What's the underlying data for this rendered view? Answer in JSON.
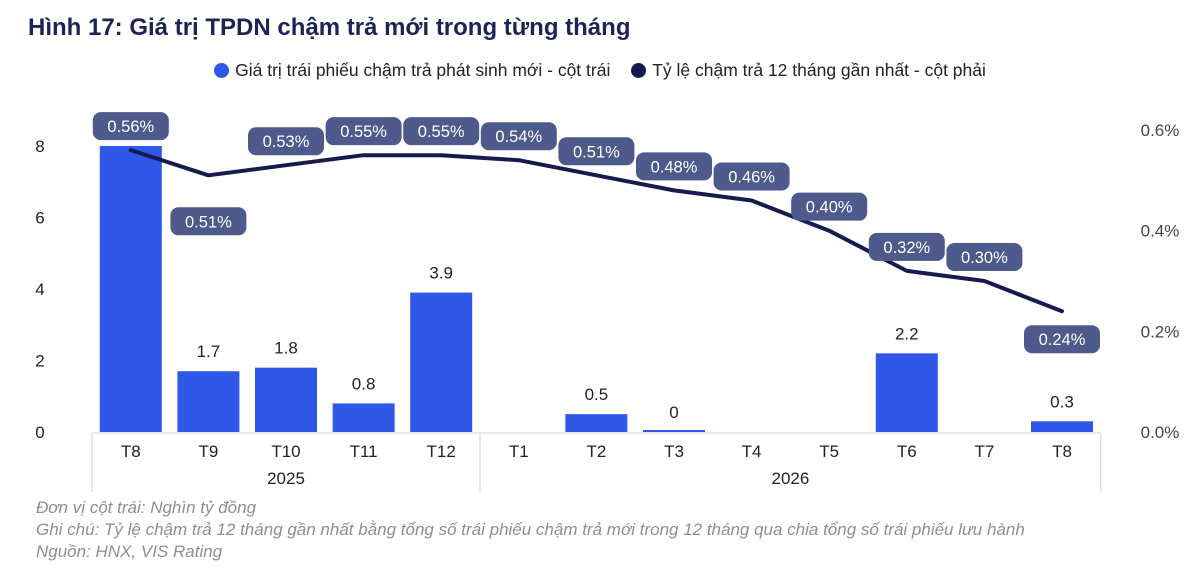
{
  "title": "Hình 17: Giá trị TPDN chậm trả mới trong từng tháng",
  "colors": {
    "bar": "#2f58e8",
    "line": "#161a4e",
    "label_bg": "#4e5a8c",
    "title": "#1c2454"
  },
  "chart_data": {
    "type": "bar",
    "categories": [
      "T8",
      "T9",
      "T10",
      "T11",
      "T12",
      "T1",
      "T2",
      "T3",
      "T4",
      "T5",
      "T6",
      "T7",
      "T8"
    ],
    "year_groups": [
      {
        "label": "2025",
        "start": 0,
        "end": 4
      },
      {
        "label": "2026",
        "start": 5,
        "end": 12
      }
    ],
    "series": [
      {
        "name": "Giá trị trái phiếu chậm trả phát sinh mới - cột trái",
        "type": "bar",
        "axis": "left",
        "values": [
          8,
          1.7,
          1.8,
          0.8,
          3.9,
          null,
          0.5,
          0,
          null,
          null,
          2.2,
          null,
          0.3
        ],
        "labels": [
          "8",
          "1.7",
          "1.8",
          "0.8",
          "3.9",
          "",
          "0.5",
          "0",
          "",
          "",
          "2.2",
          "",
          "0.3"
        ]
      },
      {
        "name": "Tỷ lệ chậm trả 12 tháng gần nhất - cột phải",
        "type": "line",
        "axis": "right",
        "values": [
          0.56,
          0.51,
          0.53,
          0.55,
          0.55,
          0.54,
          0.51,
          0.48,
          0.46,
          0.4,
          0.32,
          0.3,
          0.24
        ],
        "labels": [
          "0.56%",
          "0.51%",
          "0.53%",
          "0.55%",
          "0.55%",
          "0.54%",
          "0.51%",
          "0.48%",
          "0.46%",
          "0.40%",
          "0.32%",
          "0.30%",
          "0.24%"
        ]
      }
    ],
    "y_left": {
      "lim": [
        0,
        8
      ],
      "ticks": [
        "0",
        "2",
        "4",
        "6",
        "8"
      ]
    },
    "y_right": {
      "lim": [
        0,
        0.6
      ],
      "ticks": [
        "0.0%",
        "0.2%",
        "0.4%",
        "0.6%"
      ]
    },
    "grid": false,
    "legend_position": "top"
  },
  "notes": {
    "unit": "Đơn vị cột trái: Nghìn tỷ đồng",
    "remark": "Ghi chú: Tỷ lệ chậm trả 12 tháng gần nhất bằng tổng số trái phiếu chậm trả mới trong 12 tháng qua chia tổng số trái phiếu lưu hành",
    "source": "Nguồn: HNX, VIS Rating"
  }
}
